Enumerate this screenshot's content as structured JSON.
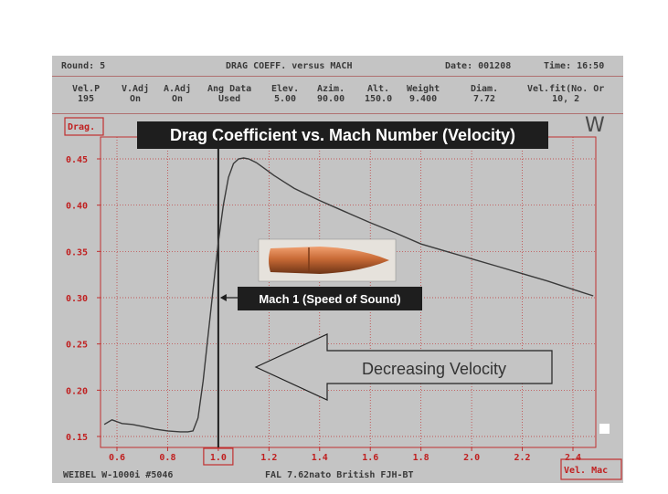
{
  "header": {
    "round": "Round: 5",
    "title": "DRAG COEFF. versus MACH",
    "date": "Date: 001208",
    "time": "Time: 16:50"
  },
  "params": [
    {
      "label": "Vel.P",
      "value": "195"
    },
    {
      "label": "V.Adj",
      "value": "On"
    },
    {
      "label": "A.Adj",
      "value": "On"
    },
    {
      "label": "Ang Data",
      "value": "Used"
    },
    {
      "label": "Elev.",
      "value": "5.00"
    },
    {
      "label": "Azim.",
      "value": "90.00"
    },
    {
      "label": "Alt.",
      "value": "150.0"
    },
    {
      "label": "Weight",
      "value": "9.400"
    },
    {
      "label": "Diam.",
      "value": "7.72"
    },
    {
      "label": "Vel.fit(No. Or",
      "value": "10, 2"
    }
  ],
  "footer": {
    "left": "WEIBEL W-1000i #5046",
    "center": "FAL 7.62nato British FJH-BT"
  },
  "logo": "W",
  "callouts": {
    "mach1": "Mach 1 (Speed of Sound)",
    "decreasing": "Decreasing Velocity"
  },
  "chart_data": {
    "type": "line",
    "title": "Drag Coefficient vs. Mach Number (Velocity)",
    "xlabel": "Vel. Mac",
    "ylabel": "Drag.",
    "xlim": [
      0.55,
      2.48
    ],
    "ylim": [
      0.14,
      0.47
    ],
    "x_ticks": [
      "0.6",
      "0.8",
      "1.0",
      "1.2",
      "1.4",
      "1.6",
      "1.8",
      "2.0",
      "2.2",
      "2.4"
    ],
    "y_ticks": [
      "0.15",
      "0.20",
      "0.25",
      "0.30",
      "0.35",
      "0.40",
      "0.45"
    ],
    "grid": true,
    "highlighted_x_tick": "1.0",
    "reference_line_x": 1.0,
    "series": [
      {
        "color": "#3a3a3a",
        "x": [
          0.55,
          0.58,
          0.62,
          0.66,
          0.7,
          0.75,
          0.8,
          0.85,
          0.88,
          0.9,
          0.92,
          0.94,
          0.96,
          0.98,
          1.0,
          1.02,
          1.04,
          1.06,
          1.08,
          1.1,
          1.12,
          1.15,
          1.18,
          1.22,
          1.26,
          1.3,
          1.4,
          1.5,
          1.6,
          1.7,
          1.8,
          1.9,
          2.0,
          2.1,
          2.2,
          2.3,
          2.4,
          2.48
        ],
        "y": [
          0.163,
          0.168,
          0.164,
          0.163,
          0.161,
          0.158,
          0.156,
          0.155,
          0.155,
          0.156,
          0.17,
          0.21,
          0.26,
          0.31,
          0.36,
          0.4,
          0.43,
          0.445,
          0.45,
          0.451,
          0.45,
          0.446,
          0.44,
          0.432,
          0.425,
          0.418,
          0.405,
          0.393,
          0.381,
          0.37,
          0.358,
          0.35,
          0.342,
          0.334,
          0.326,
          0.318,
          0.309,
          0.302
        ]
      }
    ]
  }
}
